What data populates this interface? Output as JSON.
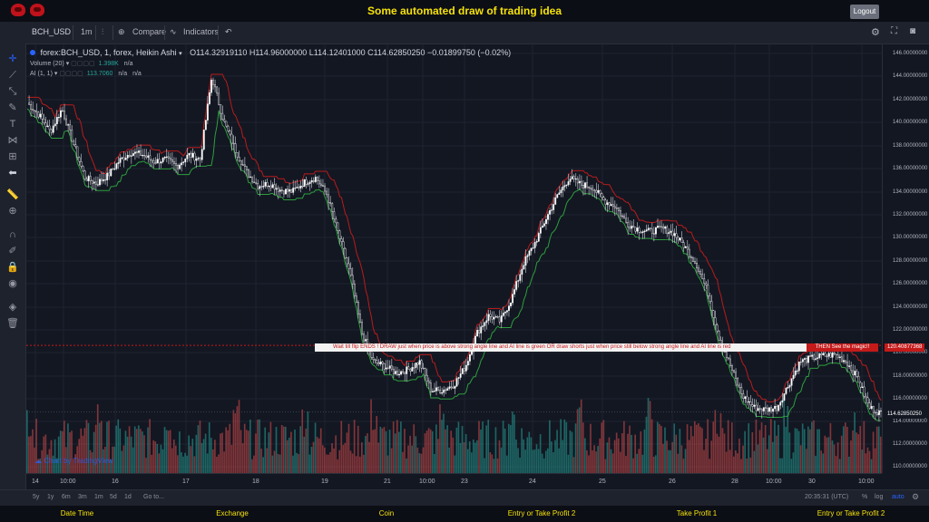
{
  "app": {
    "title": "Some automated draw of trading idea",
    "logout_label": "Logout"
  },
  "toolbar": {
    "symbol": "BCH_USD",
    "interval": "1m",
    "compare": "Compare",
    "indicators": "Indicators",
    "undo": "↶"
  },
  "legend": {
    "series_line": "forex:BCH_USD, 1, forex, Heikin Ashi",
    "ohlc": "O114.32919110  H114.96000000  L114.12401000  C114.62850250  −0.01899750 (−0.02%)",
    "volume_label": "Volume (20)",
    "volume_value": "1.398K",
    "volume_na": "n/a",
    "ai_label": "AI (1, 1)",
    "ai_value": "113.7060",
    "ai_na1": "n/a",
    "ai_na2": "n/a"
  },
  "banner": {
    "text": "Wait till flip ENDS !    DRAW just when  price is above strong angle line and AI line is green        OR        draw shorts just when price still below strong angle line and AI line is red",
    "highlight": "THEN See the magic!!"
  },
  "price_axis": {
    "ticks": [
      "146.00000000",
      "144.00000000",
      "142.00000000",
      "140.00000000",
      "138.00000000",
      "136.00000000",
      "134.00000000",
      "132.00000000",
      "130.00000000",
      "128.00000000",
      "126.00000000",
      "124.00000000",
      "122.00000000",
      "120.00000000",
      "118.00000000",
      "116.00000000",
      "114.00000000",
      "112.00000000",
      "110.00000000"
    ],
    "marker_red": "120.40877368",
    "marker_last": "114.62850250"
  },
  "time_axis": {
    "ticks": [
      "14",
      "10:00",
      "16",
      "17",
      "18",
      "19",
      "21",
      "10:00",
      "23",
      "24",
      "25",
      "26",
      "28",
      "10:00",
      "30",
      "10:00"
    ]
  },
  "bottombar": {
    "ranges": [
      "5y",
      "1y",
      "6m",
      "3m",
      "1m",
      "5d",
      "1d"
    ],
    "goto": "Go to...",
    "clock": "20:35:31 (UTC)",
    "percent": "%",
    "log": "log",
    "auto": "auto"
  },
  "watermark": "Chart by TradingView",
  "footer": {
    "labels": [
      "Date Time",
      "Exchange",
      "Coin",
      "Entry or Take Profit 2",
      "Take Profit 1",
      "Entry or Take Profit 2"
    ]
  },
  "chart_data": {
    "type": "candlestick",
    "y_range": [
      109.3,
      146.6
    ],
    "close_path": [
      141.5,
      140.5,
      139.0,
      141.0,
      138.0,
      135.0,
      134.5,
      135.2,
      136.5,
      137.2,
      137.0,
      136.4,
      136.6,
      136.0,
      137.0,
      136.6,
      143.8,
      140.0,
      137.5,
      135.5,
      134.3,
      134.5,
      133.9,
      133.8,
      134.6,
      135.0,
      133.5,
      130.0,
      126.6,
      121.5,
      119.0,
      118.6,
      118.0,
      118.3,
      119.0,
      116.5,
      116.5,
      117.0,
      118.6,
      121.5,
      123.0,
      122.5,
      124.5,
      127.5,
      129.3,
      131.5,
      133.5,
      135.0,
      134.4,
      134.2,
      133.0,
      132.5,
      131.0,
      130.5,
      130.3,
      130.6,
      130.2,
      129.0,
      127.5,
      125.0,
      121.0,
      118.5,
      116.0,
      115.0,
      114.8,
      115.0,
      117.0,
      119.0,
      119.3,
      119.5,
      119.6,
      119.0,
      117.5,
      115.0,
      114.5
    ],
    "red_marker_price": 120.4088,
    "last_price": 114.6285
  }
}
